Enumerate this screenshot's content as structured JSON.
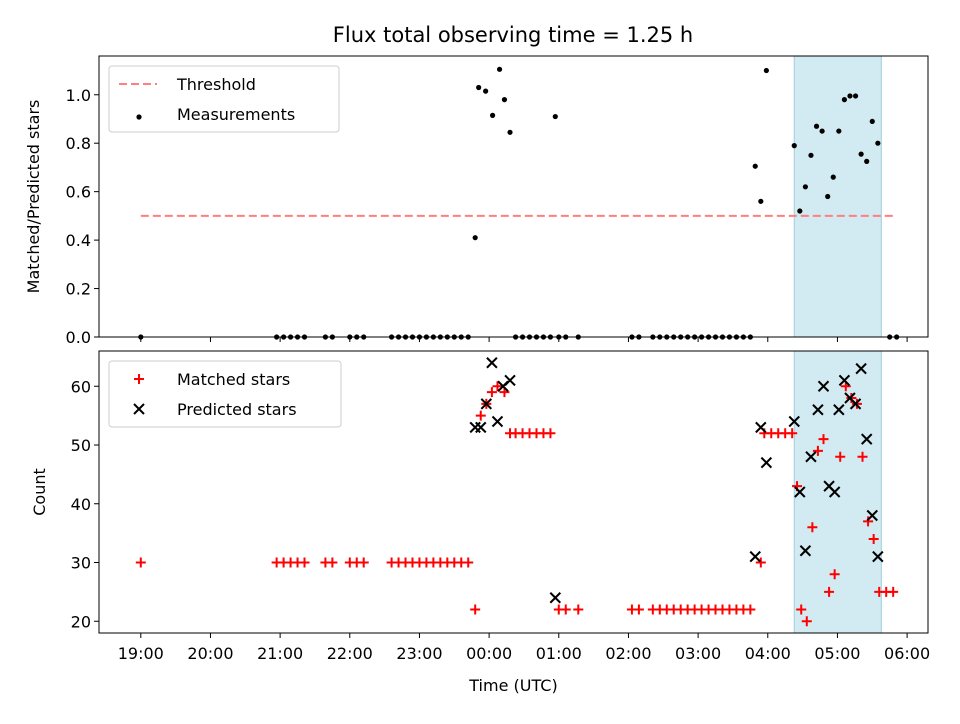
{
  "chart_data": [
    {
      "type": "scatter",
      "title": "Flux total observing time = 1.25 h",
      "ylabel": "Matched/Predicted stars",
      "xlabel": "",
      "xlim": [
        -0.6,
        11.3
      ],
      "ylim": [
        0,
        1.16
      ],
      "yticks": [
        0.0,
        0.2,
        0.4,
        0.6,
        0.8,
        1.0
      ],
      "ytick_labels": [
        "0.0",
        "0.2",
        "0.4",
        "0.6",
        "0.8",
        "1.0"
      ],
      "highlight_span": [
        9.38,
        10.63
      ],
      "highlight_color": "#add8e6",
      "threshold": {
        "name": "Threshold",
        "y": 0.5,
        "x_range": [
          0.0,
          10.85
        ],
        "color": "#ff7f7f"
      },
      "legend": [
        "Threshold",
        "Measurements"
      ],
      "legend_position": "upper-left",
      "series": [
        {
          "name": "Measurements",
          "color": "#000000",
          "points": [
            [
              0.0,
              0
            ],
            [
              1.95,
              0
            ],
            [
              2.05,
              0
            ],
            [
              2.15,
              0
            ],
            [
              2.25,
              0
            ],
            [
              2.35,
              0
            ],
            [
              2.65,
              0
            ],
            [
              2.75,
              0
            ],
            [
              3.0,
              0
            ],
            [
              3.1,
              0
            ],
            [
              3.2,
              0
            ],
            [
              3.6,
              0
            ],
            [
              3.7,
              0
            ],
            [
              3.8,
              0
            ],
            [
              3.9,
              0
            ],
            [
              4.0,
              0
            ],
            [
              4.1,
              0
            ],
            [
              4.2,
              0
            ],
            [
              4.3,
              0
            ],
            [
              4.4,
              0
            ],
            [
              4.5,
              0
            ],
            [
              4.6,
              0
            ],
            [
              4.7,
              0
            ],
            [
              5.38,
              0
            ],
            [
              5.48,
              0
            ],
            [
              5.58,
              0
            ],
            [
              5.68,
              0
            ],
            [
              5.78,
              0
            ],
            [
              5.88,
              0
            ],
            [
              6.0,
              0
            ],
            [
              6.1,
              0
            ],
            [
              6.28,
              0
            ],
            [
              7.05,
              0
            ],
            [
              7.15,
              0
            ],
            [
              7.35,
              0
            ],
            [
              7.45,
              0
            ],
            [
              7.55,
              0
            ],
            [
              7.65,
              0
            ],
            [
              7.75,
              0
            ],
            [
              7.85,
              0
            ],
            [
              7.95,
              0
            ],
            [
              8.05,
              0
            ],
            [
              8.15,
              0
            ],
            [
              8.25,
              0
            ],
            [
              8.35,
              0
            ],
            [
              8.45,
              0
            ],
            [
              8.55,
              0
            ],
            [
              8.65,
              0
            ],
            [
              8.75,
              0
            ],
            [
              10.75,
              0
            ],
            [
              10.85,
              0
            ],
            [
              4.8,
              0.41
            ],
            [
              4.85,
              1.03
            ],
            [
              4.95,
              1.015
            ],
            [
              5.05,
              0.915
            ],
            [
              5.15,
              1.105
            ],
            [
              5.22,
              0.98
            ],
            [
              5.3,
              0.845
            ],
            [
              5.95,
              0.91
            ],
            [
              8.82,
              0.705
            ],
            [
              8.9,
              0.56
            ],
            [
              8.98,
              1.1
            ],
            [
              9.38,
              0.79
            ],
            [
              9.46,
              0.52
            ],
            [
              9.54,
              0.62
            ],
            [
              9.62,
              0.75
            ],
            [
              9.7,
              0.87
            ],
            [
              9.78,
              0.85
            ],
            [
              9.86,
              0.58
            ],
            [
              9.94,
              0.66
            ],
            [
              10.02,
              0.85
            ],
            [
              10.1,
              0.98
            ],
            [
              10.18,
              0.995
            ],
            [
              10.26,
              0.995
            ],
            [
              10.34,
              0.755
            ],
            [
              10.42,
              0.725
            ],
            [
              10.5,
              0.89
            ],
            [
              10.58,
              0.8
            ]
          ]
        }
      ]
    },
    {
      "type": "scatter",
      "title": "",
      "xlabel": "Time (UTC)",
      "ylabel": "Count",
      "xlim": [
        -0.6,
        11.3
      ],
      "ylim": [
        18,
        66
      ],
      "yticks": [
        20,
        30,
        40,
        50,
        60
      ],
      "ytick_labels": [
        "20",
        "30",
        "40",
        "50",
        "60"
      ],
      "xticks": [
        0,
        1,
        2,
        3,
        4,
        5,
        6,
        7,
        8,
        9,
        10,
        11
      ],
      "xtick_labels": [
        "19:00",
        "20:00",
        "21:00",
        "22:00",
        "23:00",
        "00:00",
        "01:00",
        "02:00",
        "03:00",
        "04:00",
        "05:00",
        "06:00"
      ],
      "highlight_span": [
        9.38,
        10.63
      ],
      "highlight_color": "#add8e6",
      "legend": [
        "Matched stars",
        "Predicted stars"
      ],
      "legend_position": "upper-left",
      "series": [
        {
          "name": "Matched stars",
          "marker": "+",
          "color": "#ff0000",
          "points": [
            [
              0.0,
              30
            ],
            [
              1.95,
              30
            ],
            [
              2.05,
              30
            ],
            [
              2.15,
              30
            ],
            [
              2.25,
              30
            ],
            [
              2.35,
              30
            ],
            [
              2.65,
              30
            ],
            [
              2.75,
              30
            ],
            [
              3.0,
              30
            ],
            [
              3.1,
              30
            ],
            [
              3.2,
              30
            ],
            [
              3.6,
              30
            ],
            [
              3.7,
              30
            ],
            [
              3.8,
              30
            ],
            [
              3.9,
              30
            ],
            [
              4.0,
              30
            ],
            [
              4.1,
              30
            ],
            [
              4.2,
              30
            ],
            [
              4.3,
              30
            ],
            [
              4.4,
              30
            ],
            [
              4.5,
              30
            ],
            [
              4.6,
              30
            ],
            [
              4.7,
              30
            ],
            [
              4.8,
              22
            ],
            [
              4.88,
              55
            ],
            [
              4.96,
              57
            ],
            [
              5.04,
              59
            ],
            [
              5.12,
              60
            ],
            [
              5.22,
              59
            ],
            [
              5.3,
              52
            ],
            [
              5.38,
              52
            ],
            [
              5.48,
              52
            ],
            [
              5.58,
              52
            ],
            [
              5.68,
              52
            ],
            [
              5.78,
              52
            ],
            [
              5.88,
              52
            ],
            [
              6.0,
              22
            ],
            [
              6.1,
              22
            ],
            [
              6.28,
              22
            ],
            [
              7.05,
              22
            ],
            [
              7.15,
              22
            ],
            [
              7.35,
              22
            ],
            [
              7.45,
              22
            ],
            [
              7.55,
              22
            ],
            [
              7.65,
              22
            ],
            [
              7.75,
              22
            ],
            [
              7.85,
              22
            ],
            [
              7.95,
              22
            ],
            [
              8.05,
              22
            ],
            [
              8.15,
              22
            ],
            [
              8.25,
              22
            ],
            [
              8.35,
              22
            ],
            [
              8.45,
              22
            ],
            [
              8.55,
              22
            ],
            [
              8.65,
              22
            ],
            [
              8.75,
              22
            ],
            [
              8.9,
              30
            ],
            [
              8.95,
              52
            ],
            [
              9.05,
              52
            ],
            [
              9.15,
              52
            ],
            [
              9.25,
              52
            ],
            [
              9.35,
              52
            ],
            [
              9.42,
              43
            ],
            [
              9.48,
              22
            ],
            [
              9.56,
              20
            ],
            [
              9.64,
              36
            ],
            [
              9.72,
              49
            ],
            [
              9.8,
              51
            ],
            [
              9.88,
              25
            ],
            [
              9.96,
              28
            ],
            [
              10.04,
              48
            ],
            [
              10.12,
              60
            ],
            [
              10.2,
              58
            ],
            [
              10.28,
              57
            ],
            [
              10.36,
              48
            ],
            [
              10.44,
              37
            ],
            [
              10.52,
              34
            ],
            [
              10.6,
              25
            ],
            [
              10.7,
              25
            ],
            [
              10.8,
              25
            ]
          ]
        },
        {
          "name": "Predicted stars",
          "marker": "x",
          "color": "#000000",
          "points": [
            [
              4.8,
              53
            ],
            [
              4.88,
              53
            ],
            [
              4.96,
              57
            ],
            [
              5.04,
              64
            ],
            [
              5.12,
              54
            ],
            [
              5.2,
              60
            ],
            [
              5.3,
              61
            ],
            [
              5.95,
              24
            ],
            [
              8.82,
              31
            ],
            [
              8.9,
              53
            ],
            [
              8.98,
              47
            ],
            [
              9.38,
              54
            ],
            [
              9.46,
              42
            ],
            [
              9.54,
              32
            ],
            [
              9.62,
              48
            ],
            [
              9.72,
              56
            ],
            [
              9.8,
              60
            ],
            [
              9.88,
              43
            ],
            [
              9.96,
              42
            ],
            [
              10.02,
              56
            ],
            [
              10.1,
              61
            ],
            [
              10.18,
              58
            ],
            [
              10.26,
              57
            ],
            [
              10.34,
              63
            ],
            [
              10.42,
              51
            ],
            [
              10.5,
              38
            ],
            [
              10.58,
              31
            ]
          ]
        }
      ]
    }
  ]
}
